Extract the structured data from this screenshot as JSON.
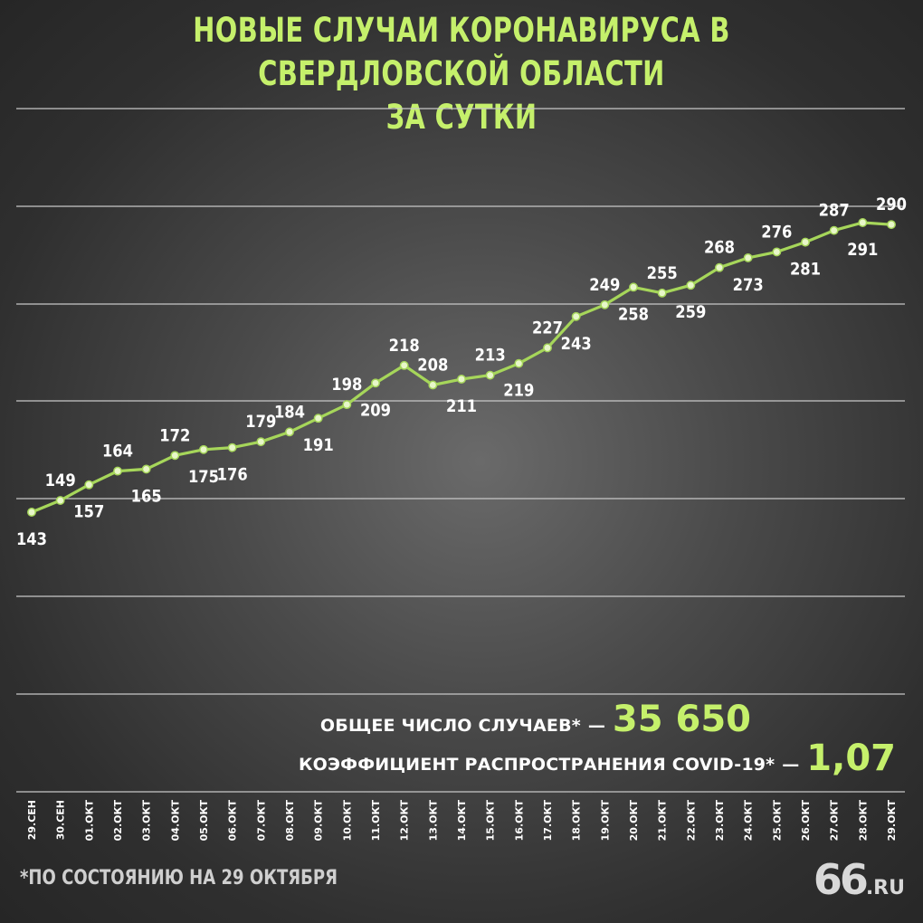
{
  "title": {
    "line1": "НОВЫЕ СЛУЧАИ КОРОНАВИРУСА В СВЕРДЛОВСКОЙ ОБЛАСТИ",
    "line2": "ЗА СУТКИ"
  },
  "stats": {
    "total_label": "ОБЩЕЕ ЧИСЛО СЛУЧАЕВ*",
    "total_value": "35 650",
    "coef_label": "КОЭФФИЦИЕНТ РАСПРОСТРАНЕНИЯ COVID-19*",
    "coef_value": "1,07",
    "dash": "—"
  },
  "footnote": "*ПО СОСТОЯНИЮ НА 29 ОКТЯБРЯ",
  "logo": {
    "number": "66",
    "suffix": ".RU"
  },
  "colors": {
    "accent": "#c5f06b",
    "line": "#a6d65a",
    "grid": "#c8c8c8",
    "text": "#ffffff"
  },
  "chart_data": {
    "type": "line",
    "categories": [
      "29.СЕН",
      "30.СЕН",
      "01.ОКТ",
      "02.ОКТ",
      "03.ОКТ",
      "04.ОКТ",
      "05.ОКТ",
      "06.ОКТ",
      "07.ОКТ",
      "08.ОКТ",
      "09.ОКТ",
      "10.ОКТ",
      "11.ОКТ",
      "12.ОКТ",
      "13.ОКТ",
      "14.ОКТ",
      "15.ОКТ",
      "16.ОКТ",
      "17.ОКТ",
      "18.ОКТ",
      "19.ОКТ",
      "20.ОКТ",
      "21.ОКТ",
      "22.ОКТ",
      "23.ОКТ",
      "24.ОКТ",
      "25.ОКТ",
      "26.ОКТ",
      "27.ОКТ",
      "28.ОКТ",
      "29.ОКТ"
    ],
    "values": [
      143,
      149,
      157,
      164,
      165,
      172,
      175,
      176,
      179,
      184,
      191,
      198,
      209,
      218,
      208,
      211,
      213,
      219,
      227,
      243,
      249,
      258,
      255,
      259,
      268,
      273,
      276,
      281,
      287,
      291,
      290
    ],
    "label_positions": [
      "below",
      "above",
      "below",
      "above",
      "below",
      "above",
      "below",
      "below",
      "above",
      "above",
      "below",
      "above",
      "below",
      "above",
      "above",
      "below",
      "above",
      "below",
      "above",
      "below",
      "above",
      "below",
      "above",
      "below",
      "above",
      "below",
      "above",
      "below",
      "above",
      "below",
      "above"
    ],
    "grid": true,
    "title": "НОВЫЕ СЛУЧАИ КОРОНАВИРУСА В СВЕРДЛОВСКОЙ ОБЛАСТИ ЗА СУТКИ"
  }
}
